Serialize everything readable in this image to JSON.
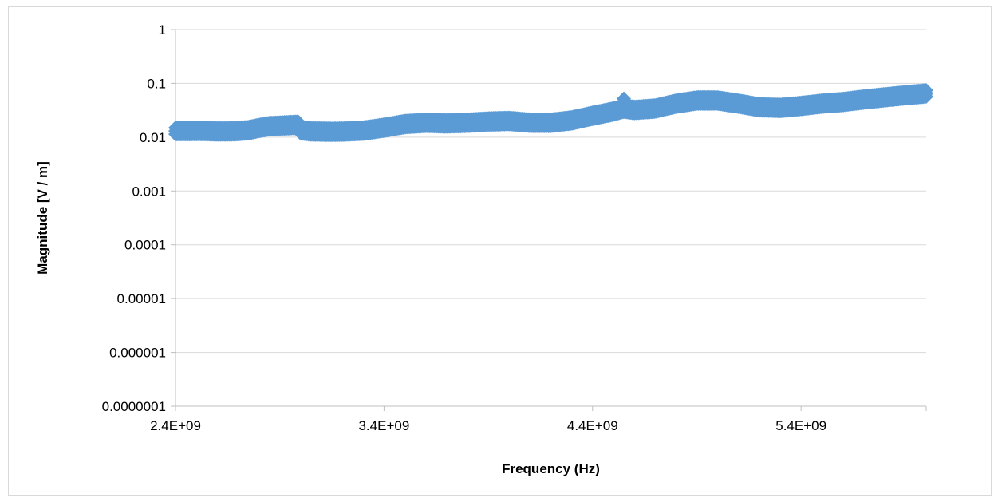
{
  "chart_data": {
    "type": "scatter",
    "title": "",
    "xlabel": "Frequency (Hz)",
    "ylabel": "Magnitude [V / m]",
    "x_scale": "linear",
    "y_scale": "log",
    "xlim": [
      2400000000,
      6000000000
    ],
    "ylim": [
      1e-07,
      1
    ],
    "x_ticks": [
      2400000000,
      3400000000,
      4400000000,
      5400000000
    ],
    "x_tick_labels": [
      "2.4E+09",
      "3.4E+09",
      "4.4E+09",
      "5.4E+09"
    ],
    "y_ticks": [
      1,
      0.1,
      0.01,
      0.001,
      0.0001,
      1e-05,
      1e-06,
      1e-07
    ],
    "y_tick_labels": [
      "1",
      "0.1",
      "0.01",
      "0.001",
      "0.0001",
      "0.00001",
      "0.000001",
      "0.0000001"
    ],
    "grid": "horizontal",
    "legend": "none",
    "marker": "diamond",
    "colors": {
      "series": "#5b9bd5",
      "grid": "#d9d9d9",
      "axis": "#bfbfbf"
    },
    "series": [
      {
        "x": [
          2400000000,
          2450000000,
          2500000000,
          2550000000,
          2600000000,
          2650000000,
          2700000000,
          2750000000,
          2800000000,
          2850000000,
          2990000000,
          3000000000,
          3050000000,
          3100000000,
          3150000000,
          3200000000,
          3300000000,
          3400000000,
          3500000000,
          3600000000,
          3700000000,
          3800000000,
          3900000000,
          4000000000,
          4100000000,
          4200000000,
          4300000000,
          4400000000,
          4500000000,
          4550000000,
          4600000000,
          4700000000,
          4800000000,
          4900000000,
          5000000000,
          5100000000,
          5200000000,
          5300000000,
          5400000000,
          5500000000,
          5600000000,
          5700000000,
          5800000000,
          5900000000,
          6000000000
        ],
        "y": [
          0.013,
          0.013,
          0.0131,
          0.013,
          0.0128,
          0.0128,
          0.013,
          0.0135,
          0.0148,
          0.016,
          0.017,
          0.0135,
          0.0128,
          0.0127,
          0.0126,
          0.0127,
          0.0132,
          0.015,
          0.0175,
          0.0185,
          0.018,
          0.0185,
          0.0195,
          0.02,
          0.0185,
          0.0185,
          0.0205,
          0.025,
          0.03,
          0.034,
          0.032,
          0.034,
          0.042,
          0.048,
          0.048,
          0.042,
          0.036,
          0.035,
          0.038,
          0.042,
          0.045,
          0.05,
          0.055,
          0.06,
          0.065
        ]
      }
    ]
  }
}
